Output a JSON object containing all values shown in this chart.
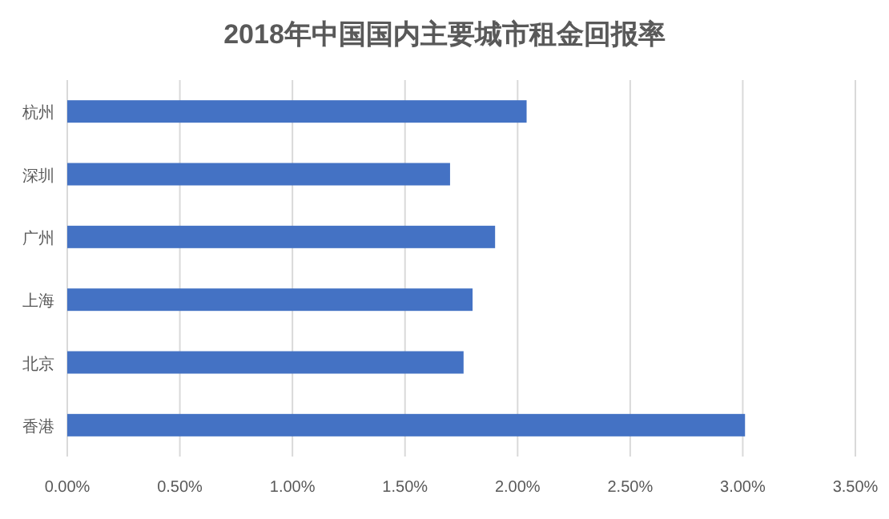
{
  "chart_data": {
    "type": "bar",
    "orientation": "horizontal",
    "title": "2018年中国国内主要城市租金回报率",
    "categories": [
      "杭州",
      "深圳",
      "广州",
      "上海",
      "北京",
      "香港"
    ],
    "values": [
      2.04,
      1.7,
      1.9,
      1.8,
      1.76,
      3.01
    ],
    "color": "#4472c4",
    "xlim": [
      0,
      3.5
    ],
    "xticks": [
      {
        "value": 0,
        "label": "0.00%"
      },
      {
        "value": 0.5,
        "label": "0.50%"
      },
      {
        "value": 1,
        "label": "1.00%"
      },
      {
        "value": 1.5,
        "label": "1.50%"
      },
      {
        "value": 2,
        "label": "2.00%"
      },
      {
        "value": 2.5,
        "label": "2.50%"
      },
      {
        "value": 3,
        "label": "3.00%"
      },
      {
        "value": 3.5,
        "label": "3.50%"
      }
    ],
    "grid": "x"
  }
}
